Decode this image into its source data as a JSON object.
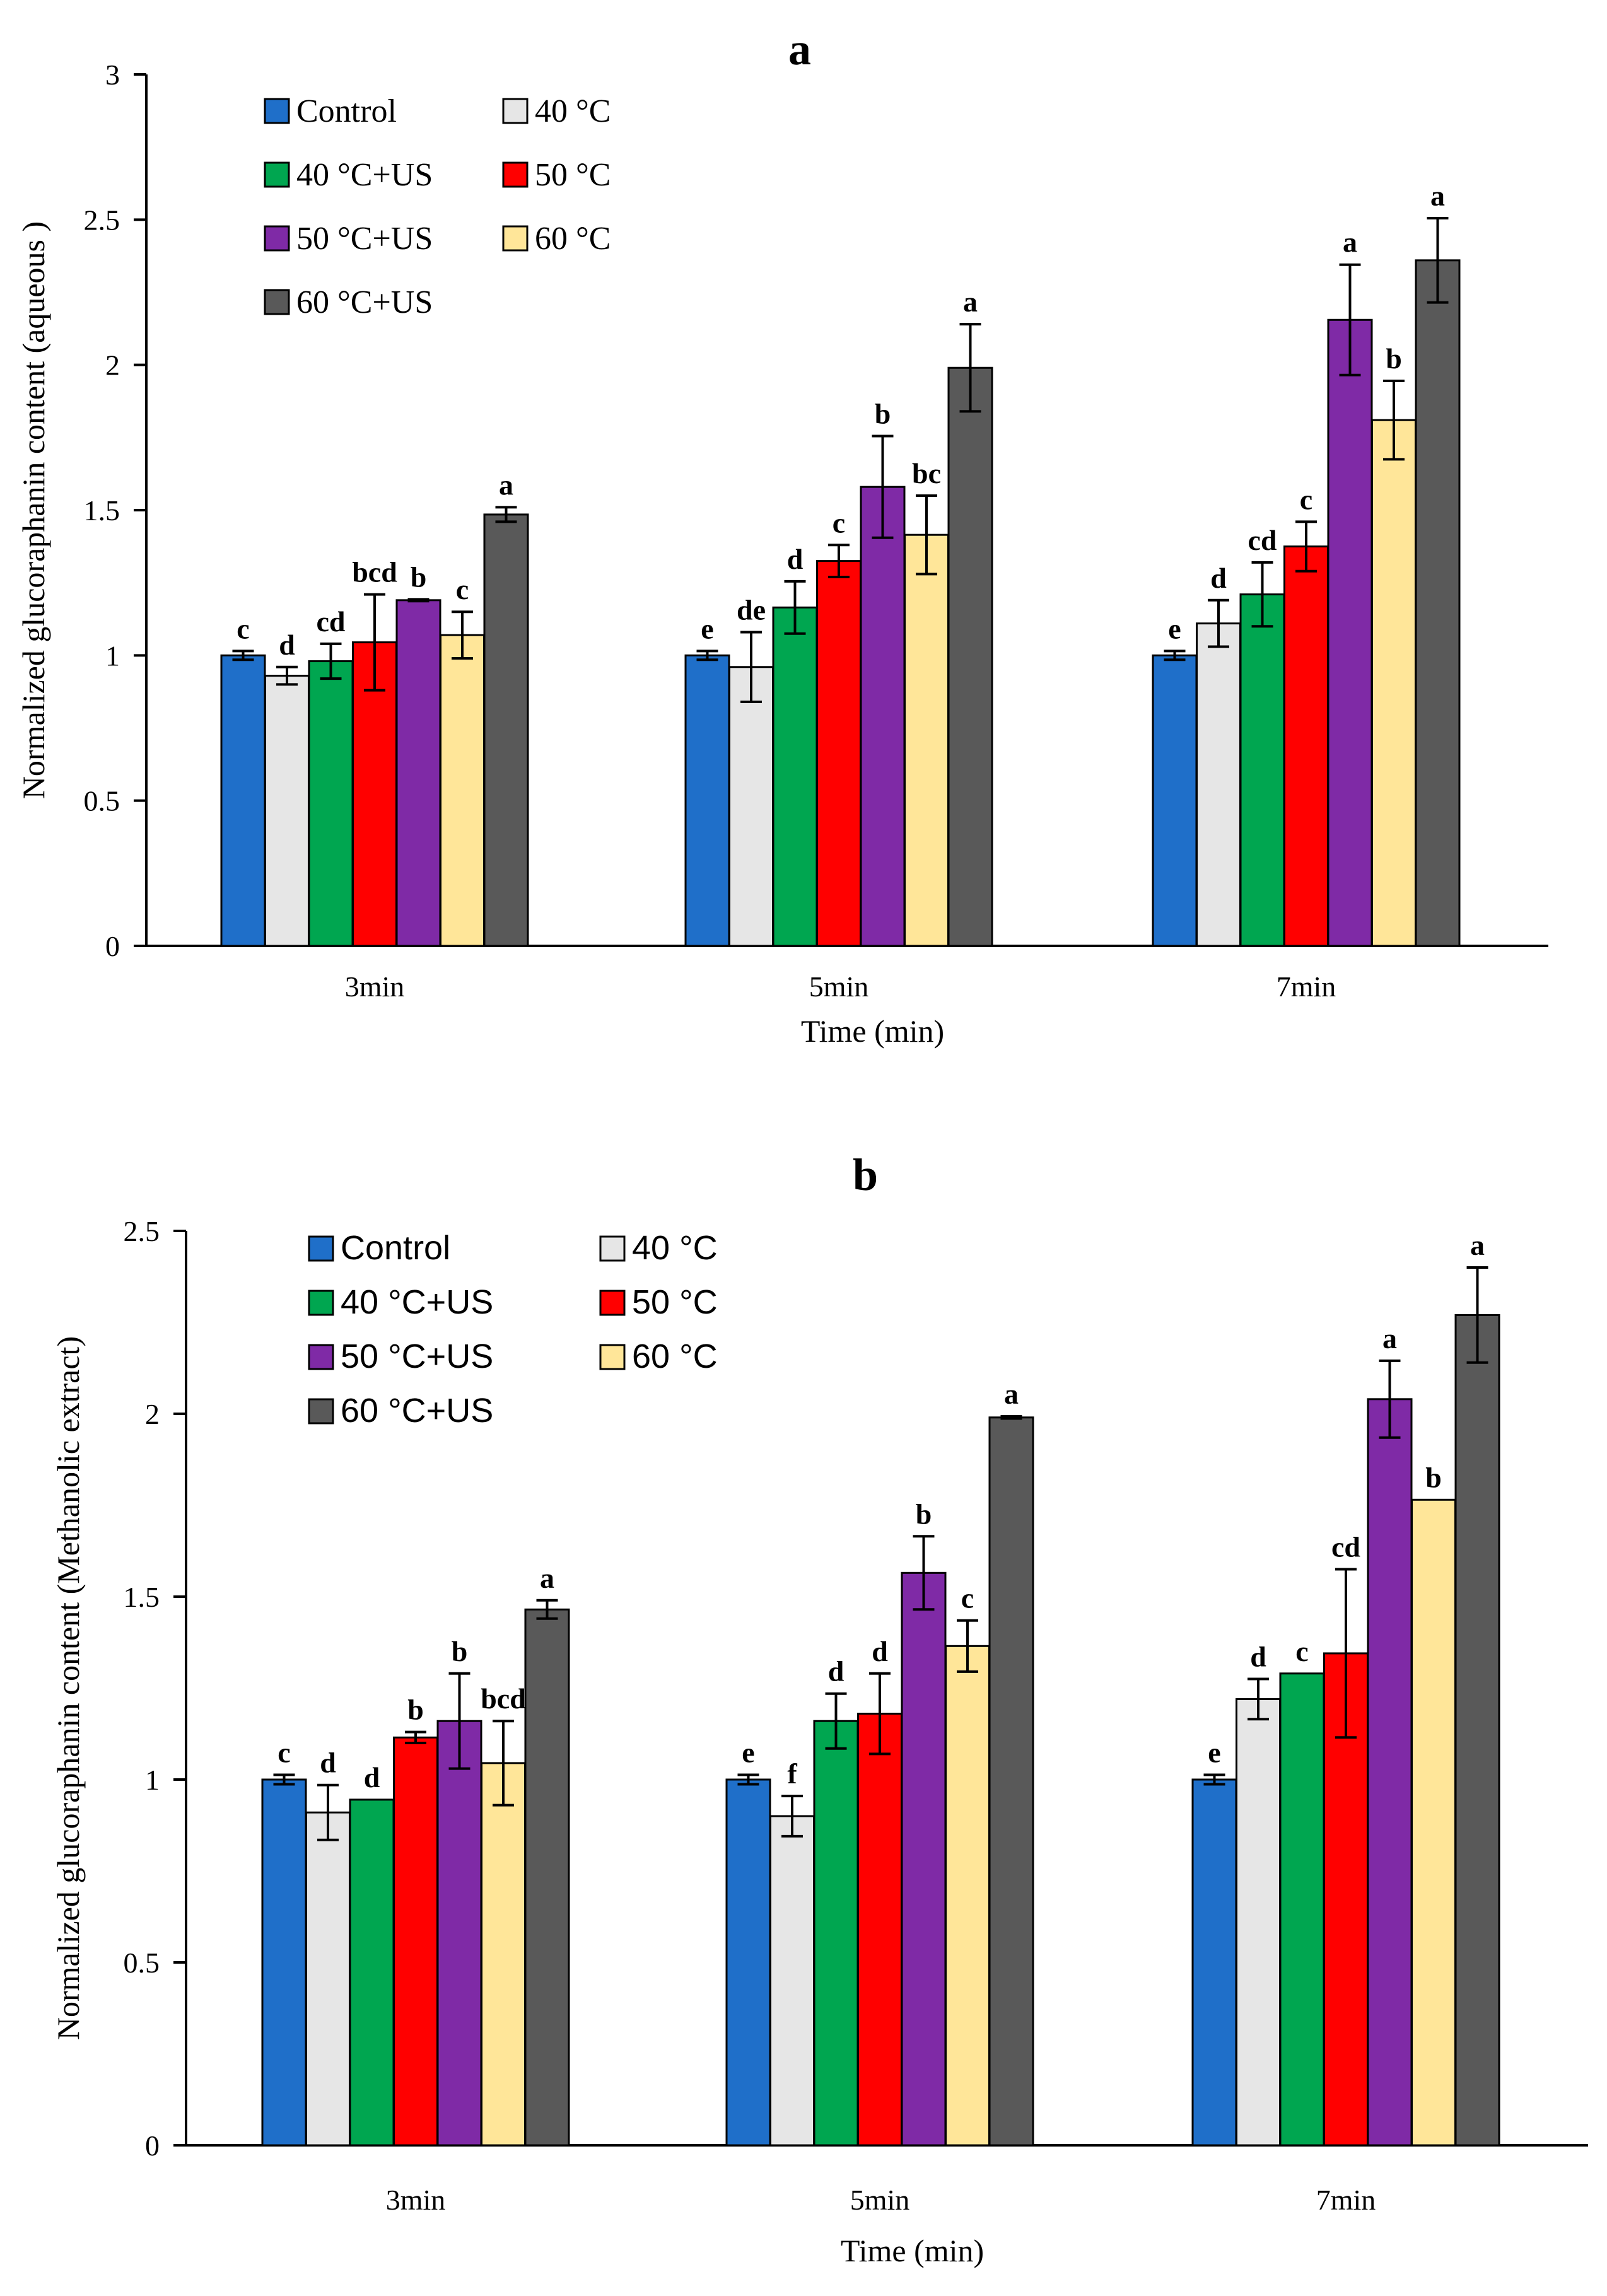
{
  "chart_data": [
    {
      "type": "bar",
      "title": "a",
      "xlabel": "Time (min)",
      "ylabel": "Normalized glucoraphanin  content (aqueous )",
      "ylim": [
        0,
        3
      ],
      "yticks": [
        "0",
        "0.5",
        "1",
        "1.5",
        "2",
        "2.5",
        "3"
      ],
      "categories": [
        "3min",
        "5min",
        "7min"
      ],
      "legend_position": "top-left",
      "series": [
        {
          "name": "Control",
          "color": "#1f6fc9",
          "values": [
            1.0,
            1.0,
            1.0
          ],
          "errors": [
            0.015,
            0.015,
            0.015
          ],
          "labels": [
            "c",
            "e",
            "e"
          ]
        },
        {
          "name": "40 °C",
          "color": "#e6e6e6",
          "values": [
            0.93,
            0.96,
            1.11
          ],
          "errors": [
            0.03,
            0.12,
            0.08
          ],
          "labels": [
            "d",
            "de",
            "d"
          ]
        },
        {
          "name": "40 °C+US",
          "color": "#00a650",
          "values": [
            0.98,
            1.165,
            1.21
          ],
          "errors": [
            0.06,
            0.09,
            0.11
          ],
          "labels": [
            "cd",
            "d",
            "cd"
          ]
        },
        {
          "name": "50 °C",
          "color": "#ff0000",
          "values": [
            1.045,
            1.325,
            1.375
          ],
          "errors": [
            0.165,
            0.055,
            0.085
          ],
          "labels": [
            "bcd",
            "c",
            "c"
          ]
        },
        {
          "name": "50 °C+US",
          "color": "#7f2aa6",
          "values": [
            1.19,
            1.58,
            2.155
          ],
          "errors": [
            0.003,
            0.175,
            0.19
          ],
          "labels": [
            "b",
            "b",
            "a"
          ]
        },
        {
          "name": "60 °C",
          "color": "#ffe699",
          "values": [
            1.07,
            1.415,
            1.81
          ],
          "errors": [
            0.08,
            0.135,
            0.135
          ],
          "labels": [
            "c",
            "bc",
            "b"
          ]
        },
        {
          "name": "60 °C+US",
          "color": "#595959",
          "values": [
            1.485,
            1.99,
            2.36
          ],
          "errors": [
            0.025,
            0.15,
            0.145
          ],
          "labels": [
            "a",
            "a",
            "a"
          ]
        }
      ]
    },
    {
      "type": "bar",
      "title": "b",
      "xlabel": "Time (min)",
      "ylabel": "Normalized glucoraphanin content (Methanolic extract)",
      "ylim": [
        0,
        2.5
      ],
      "yticks": [
        "0",
        "0.5",
        "1",
        "1.5",
        "2",
        "2.5"
      ],
      "categories": [
        "3min",
        "5min",
        "7min"
      ],
      "legend_position": "top-left",
      "series": [
        {
          "name": "Control",
          "color": "#1f6fc9",
          "values": [
            1.0,
            1.0,
            1.0
          ],
          "errors": [
            0.013,
            0.013,
            0.013
          ],
          "labels": [
            "c",
            "e",
            "e"
          ]
        },
        {
          "name": "40 °C",
          "color": "#e6e6e6",
          "values": [
            0.91,
            0.9,
            1.22
          ],
          "errors": [
            0.075,
            0.055,
            0.055
          ],
          "labels": [
            "d",
            "f",
            "d"
          ]
        },
        {
          "name": "40 °C+US",
          "color": "#00a650",
          "values": [
            0.945,
            1.16,
            1.29
          ],
          "errors": [
            0,
            0.075,
            0
          ],
          "labels": [
            "d",
            "d",
            "c"
          ]
        },
        {
          "name": "50 °C",
          "color": "#ff0000",
          "values": [
            1.115,
            1.18,
            1.345
          ],
          "errors": [
            0.015,
            0.11,
            0.23
          ],
          "labels": [
            "b",
            "d",
            "cd"
          ]
        },
        {
          "name": "50 °C+US",
          "color": "#7f2aa6",
          "values": [
            1.16,
            1.565,
            2.04
          ],
          "errors": [
            0.13,
            0.1,
            0.105
          ],
          "labels": [
            "b",
            "b",
            "a"
          ]
        },
        {
          "name": "60 °C",
          "color": "#ffe699",
          "values": [
            1.045,
            1.365,
            1.765
          ],
          "errors": [
            0.115,
            0.07,
            0
          ],
          "labels": [
            "bcd",
            "c",
            "b"
          ]
        },
        {
          "name": "60 °C+US",
          "color": "#595959",
          "values": [
            1.465,
            1.99,
            2.27
          ],
          "errors": [
            0.025,
            0.003,
            0.13
          ],
          "labels": [
            "a",
            "a",
            "a"
          ]
        }
      ]
    }
  ]
}
